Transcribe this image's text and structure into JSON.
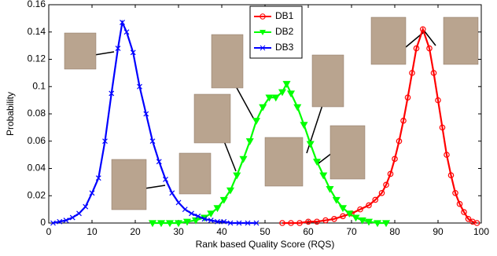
{
  "chart_data": {
    "type": "line",
    "xlabel": "Rank based Quality Score (RQS)",
    "ylabel": "Probability",
    "xlim": [
      0,
      100
    ],
    "xticks": [
      0,
      10,
      20,
      30,
      40,
      50,
      60,
      70,
      80,
      90,
      100
    ],
    "ylim": [
      0,
      0.16
    ],
    "yticks": [
      0,
      0.02,
      0.04,
      0.06,
      0.08,
      0.1,
      0.12,
      0.14,
      0.16
    ],
    "legend": "upper center",
    "series": [
      {
        "name": "DB1",
        "color": "#ff0000",
        "marker": "o",
        "x": [
          54,
          56,
          58,
          60,
          62,
          64,
          66,
          68,
          70,
          72,
          74,
          75.5,
          77,
          78,
          79,
          80,
          81,
          82,
          83,
          84,
          85,
          86.5,
          88,
          89,
          90,
          91,
          92,
          93,
          94,
          95,
          96,
          97,
          98,
          99
        ],
        "values": [
          0,
          0,
          0,
          0.001,
          0.001,
          0.002,
          0.003,
          0.005,
          0.007,
          0.01,
          0.013,
          0.017,
          0.022,
          0.028,
          0.036,
          0.047,
          0.06,
          0.075,
          0.092,
          0.11,
          0.128,
          0.142,
          0.128,
          0.11,
          0.09,
          0.07,
          0.05,
          0.035,
          0.022,
          0.014,
          0.008,
          0.003,
          0.001,
          0
        ]
      },
      {
        "name": "DB2",
        "color": "#00ff00",
        "marker": "v",
        "x": [
          24,
          26,
          28,
          30,
          32,
          34,
          36,
          37.5,
          39,
          40.5,
          42,
          43.5,
          45,
          46.5,
          48,
          49.5,
          51,
          52.5,
          54,
          55,
          56,
          57.5,
          59,
          60.5,
          62,
          63.5,
          65,
          66.5,
          68,
          69.5,
          71,
          72.5,
          74,
          76,
          78
        ],
        "values": [
          0,
          0,
          0,
          0,
          0.001,
          0.002,
          0.004,
          0.007,
          0.011,
          0.017,
          0.024,
          0.035,
          0.047,
          0.06,
          0.075,
          0.085,
          0.092,
          0.092,
          0.096,
          0.102,
          0.095,
          0.085,
          0.072,
          0.058,
          0.045,
          0.035,
          0.025,
          0.017,
          0.011,
          0.007,
          0.004,
          0.002,
          0.001,
          0,
          0
        ]
      },
      {
        "name": "DB3",
        "color": "#0000ff",
        "marker": "x",
        "x": [
          1,
          2.5,
          4,
          5.5,
          7,
          8.5,
          10,
          11.5,
          13,
          14.5,
          16,
          17,
          18,
          19.5,
          21,
          22.5,
          24,
          25.5,
          27,
          28.5,
          30,
          31.5,
          33,
          34.5,
          36,
          37.5,
          39,
          40.5,
          42,
          44,
          46,
          48
        ],
        "values": [
          0,
          0.001,
          0.002,
          0.004,
          0.007,
          0.012,
          0.022,
          0.033,
          0.06,
          0.095,
          0.128,
          0.147,
          0.14,
          0.125,
          0.1,
          0.08,
          0.06,
          0.045,
          0.032,
          0.022,
          0.015,
          0.01,
          0.007,
          0.005,
          0.003,
          0.002,
          0.001,
          0.001,
          0,
          0,
          0,
          0
        ]
      }
    ]
  }
}
